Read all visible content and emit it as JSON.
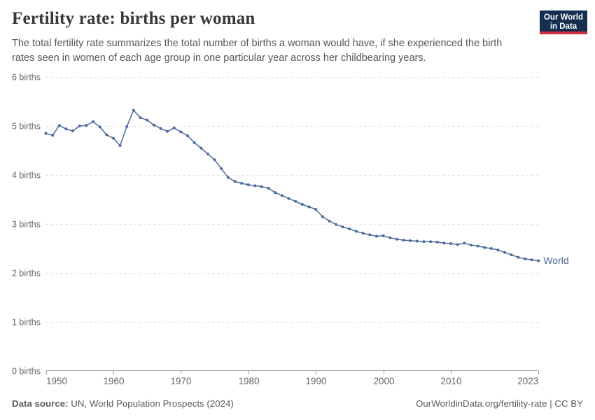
{
  "header": {
    "title": "Fertility rate: births per woman",
    "subtitle": "The total fertility rate summarizes the total number of births a woman would have, if she experienced the birth rates seen in women of each age group in one particular year across her childbearing years.",
    "logo": {
      "line1": "Our World",
      "line2": "in Data"
    }
  },
  "footer": {
    "source_label": "Data source:",
    "source_value": " UN, World Population Prospects (2024)",
    "right_text": "OurWorldinData.org/fertility-rate | CC BY"
  },
  "chart_data": {
    "type": "line",
    "title": "Fertility rate: births per woman",
    "xlabel": "",
    "ylabel": "births per woman",
    "xlim": [
      1950,
      2023
    ],
    "ylim": [
      0,
      6
    ],
    "grid": "horizontal-dashed",
    "x_ticks": [
      1950,
      1960,
      1970,
      1980,
      1990,
      2000,
      2010,
      2023
    ],
    "y_ticks": [
      0,
      1,
      2,
      3,
      4,
      5,
      6
    ],
    "y_tick_labels": [
      "0 births",
      "1 births",
      "2 births",
      "3 births",
      "4 births",
      "5 births",
      "6 births"
    ],
    "series": [
      {
        "name": "World",
        "color": "#4c6a9c",
        "x": [
          1950,
          1951,
          1952,
          1953,
          1954,
          1955,
          1956,
          1957,
          1958,
          1959,
          1960,
          1961,
          1962,
          1963,
          1964,
          1965,
          1966,
          1967,
          1968,
          1969,
          1970,
          1971,
          1972,
          1973,
          1974,
          1975,
          1976,
          1977,
          1978,
          1979,
          1980,
          1981,
          1982,
          1983,
          1984,
          1985,
          1986,
          1987,
          1988,
          1989,
          1990,
          1991,
          1992,
          1993,
          1994,
          1995,
          1996,
          1997,
          1998,
          1999,
          2000,
          2001,
          2002,
          2003,
          2004,
          2005,
          2006,
          2007,
          2008,
          2009,
          2010,
          2011,
          2012,
          2013,
          2014,
          2015,
          2016,
          2017,
          2018,
          2019,
          2020,
          2021,
          2022,
          2023
        ],
        "values": [
          4.85,
          4.81,
          5.01,
          4.94,
          4.9,
          5.0,
          5.01,
          5.09,
          4.98,
          4.82,
          4.75,
          4.6,
          4.99,
          5.32,
          5.17,
          5.12,
          5.02,
          4.95,
          4.89,
          4.96,
          4.88,
          4.8,
          4.66,
          4.55,
          4.43,
          4.31,
          4.13,
          3.95,
          3.87,
          3.83,
          3.8,
          3.78,
          3.76,
          3.73,
          3.64,
          3.58,
          3.52,
          3.46,
          3.4,
          3.35,
          3.3,
          3.15,
          3.06,
          2.99,
          2.94,
          2.9,
          2.85,
          2.81,
          2.78,
          2.75,
          2.76,
          2.72,
          2.69,
          2.67,
          2.66,
          2.65,
          2.64,
          2.64,
          2.63,
          2.61,
          2.6,
          2.58,
          2.61,
          2.57,
          2.55,
          2.52,
          2.5,
          2.47,
          2.42,
          2.37,
          2.32,
          2.29,
          2.27,
          2.25
        ]
      }
    ],
    "colors": {
      "line": "#4c6a9c",
      "grid": "#dddddd",
      "axis": "#a0a0a0",
      "tick_label": "#666666"
    }
  }
}
